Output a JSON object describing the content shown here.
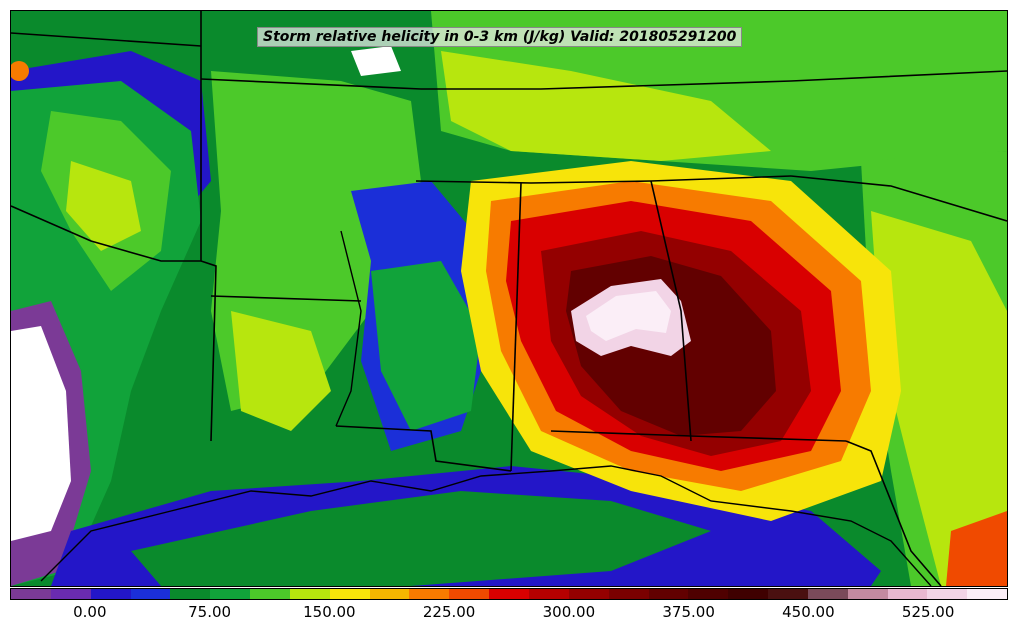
{
  "map": {
    "title": "Storm relative helicity in 0-3 km (J/kg) Valid: 201805291200",
    "icons": [
      "state-boundaries",
      "coastlines"
    ]
  },
  "colorbar": {
    "colors": [
      "#7b3a96",
      "#6a2bb0",
      "#2316c8",
      "#1b2fd8",
      "#0a8a2c",
      "#11a33a",
      "#4cc92a",
      "#b7e60e",
      "#f7e40a",
      "#f5b600",
      "#f77b00",
      "#f04a00",
      "#d90000",
      "#b50000",
      "#940000",
      "#7a0000",
      "#620000",
      "#4f0000",
      "#3f0000",
      "#4a1010",
      "#7a4a5a",
      "#c48aa0",
      "#e8b8d0",
      "#f2d4e6",
      "#fbeef7"
    ],
    "tick_labels": [
      "0.00",
      "75.00",
      "150.00",
      "225.00",
      "300.00",
      "375.00",
      "450.00",
      "525.00"
    ],
    "tick_values": [
      0,
      75,
      150,
      225,
      300,
      375,
      450,
      525
    ],
    "min": -50,
    "max": 575
  }
}
